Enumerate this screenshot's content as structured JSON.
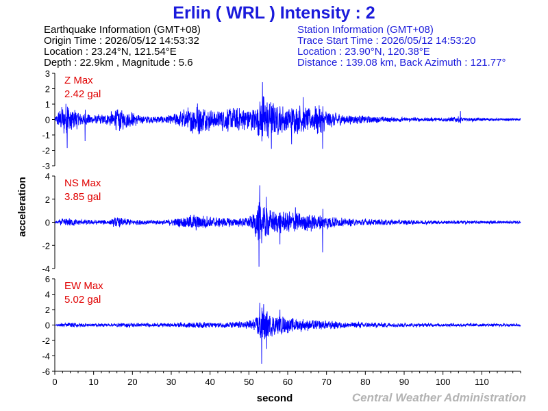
{
  "header": {
    "title": "Erlin  ( WRL )  Intensity : 2",
    "eq_info": [
      "Earthquake Information  (GMT+08)",
      "Origin Time : 2026/05/12 14:53:32",
      "Location : 23.24°N, 121.54°E",
      "Depth : 22.9km , Magnitude : 5.6"
    ],
    "station_info": [
      "Station Information  (GMT+08)",
      "Trace Start Time : 2026/05/12 14:53:20",
      "Location : 23.90°N, 120.38°E",
      "Distance : 139.08 km, Back Azimuth : 121.77°"
    ]
  },
  "footer": {
    "credit": "Central Weather Administration"
  },
  "colors": {
    "title": "#1a1adb",
    "station_text": "#1a1adb",
    "trace": "#0000ff",
    "peak_label": "#e00000",
    "credit": "#b3b3b3",
    "axis": "#000000"
  },
  "chart_data": {
    "type": "line",
    "xlabel": "second",
    "ylabel": "acceleration",
    "xlim": [
      0,
      120
    ],
    "xticks": [
      0,
      10,
      20,
      30,
      40,
      50,
      60,
      70,
      80,
      90,
      100,
      110
    ],
    "grid": false,
    "panels": [
      {
        "name": "Z Max",
        "peak_label": "2.42 gal",
        "ylim": [
          -3,
          3
        ],
        "yticks": [
          3,
          2,
          1,
          0,
          -1,
          -2,
          -3
        ],
        "envelope": [
          [
            0,
            0.08
          ],
          [
            1,
            0.6
          ],
          [
            2,
            0.9
          ],
          [
            3,
            1.1
          ],
          [
            4,
            0.8
          ],
          [
            6,
            0.55
          ],
          [
            8,
            0.4
          ],
          [
            10,
            0.3
          ],
          [
            12,
            0.3
          ],
          [
            14,
            0.4
          ],
          [
            16,
            0.8
          ],
          [
            18,
            0.6
          ],
          [
            20,
            0.5
          ],
          [
            22,
            0.3
          ],
          [
            25,
            0.2
          ],
          [
            28,
            0.25
          ],
          [
            30,
            0.3
          ],
          [
            34,
            0.7
          ],
          [
            36,
            1.1
          ],
          [
            38,
            0.9
          ],
          [
            40,
            0.7
          ],
          [
            42,
            0.6
          ],
          [
            44,
            0.8
          ],
          [
            47,
            0.8
          ],
          [
            50,
            0.7
          ],
          [
            52,
            0.9
          ],
          [
            53.5,
            1.6
          ],
          [
            55,
            1.3
          ],
          [
            57,
            1.0
          ],
          [
            60,
            0.8
          ],
          [
            63,
            0.9
          ],
          [
            66,
            0.7
          ],
          [
            68,
            1.0
          ],
          [
            70,
            0.6
          ],
          [
            73,
            0.4
          ],
          [
            76,
            0.3
          ],
          [
            80,
            0.25
          ],
          [
            85,
            0.18
          ],
          [
            90,
            0.14
          ],
          [
            100,
            0.12
          ],
          [
            104,
            0.2
          ],
          [
            106,
            0.12
          ],
          [
            110,
            0.1
          ],
          [
            120,
            0.08
          ]
        ],
        "spikes": [
          [
            3.2,
            -1.85
          ],
          [
            7.8,
            -1.4
          ],
          [
            53.5,
            2.42
          ],
          [
            55.8,
            -1.9
          ],
          [
            61,
            -1.6
          ],
          [
            69,
            -1.9
          ],
          [
            64,
            1.45
          ],
          [
            104.5,
            0.55
          ]
        ]
      },
      {
        "name": "NS Max",
        "peak_label": "3.85 gal",
        "ylim": [
          -4,
          4
        ],
        "yticks": [
          4,
          2,
          0,
          -2,
          -4
        ],
        "envelope": [
          [
            0,
            0.05
          ],
          [
            2,
            0.3
          ],
          [
            4,
            0.4
          ],
          [
            6,
            0.25
          ],
          [
            10,
            0.2
          ],
          [
            14,
            0.2
          ],
          [
            16,
            0.45
          ],
          [
            18,
            0.35
          ],
          [
            20,
            0.25
          ],
          [
            25,
            0.2
          ],
          [
            28,
            0.2
          ],
          [
            30,
            0.3
          ],
          [
            34,
            0.5
          ],
          [
            36,
            0.7
          ],
          [
            38,
            0.6
          ],
          [
            40,
            0.5
          ],
          [
            44,
            0.4
          ],
          [
            48,
            0.35
          ],
          [
            51,
            0.6
          ],
          [
            52.5,
            1.8
          ],
          [
            54,
            1.5
          ],
          [
            56,
            1.0
          ],
          [
            60,
            0.9
          ],
          [
            64,
            0.8
          ],
          [
            68,
            0.7
          ],
          [
            70,
            0.55
          ],
          [
            75,
            0.35
          ],
          [
            80,
            0.28
          ],
          [
            90,
            0.2
          ],
          [
            100,
            0.16
          ],
          [
            110,
            0.14
          ],
          [
            120,
            0.12
          ]
        ],
        "spikes": [
          [
            52.8,
            3.2
          ],
          [
            52.6,
            -3.85
          ],
          [
            54.5,
            2.2
          ],
          [
            58,
            -1.9
          ],
          [
            62,
            1.3
          ],
          [
            69,
            -2.6
          ]
        ]
      },
      {
        "name": "EW Max",
        "peak_label": "5.02 gal",
        "ylim": [
          -6,
          6
        ],
        "yticks": [
          6,
          4,
          2,
          0,
          -2,
          -4,
          -6
        ],
        "envelope": [
          [
            0,
            0.05
          ],
          [
            2,
            0.25
          ],
          [
            5,
            0.3
          ],
          [
            10,
            0.2
          ],
          [
            15,
            0.2
          ],
          [
            18,
            0.3
          ],
          [
            25,
            0.25
          ],
          [
            30,
            0.25
          ],
          [
            35,
            0.35
          ],
          [
            38,
            0.4
          ],
          [
            42,
            0.35
          ],
          [
            46,
            0.4
          ],
          [
            50,
            0.6
          ],
          [
            52,
            1.0
          ],
          [
            53,
            2.4
          ],
          [
            55,
            1.6
          ],
          [
            57,
            1.2
          ],
          [
            60,
            1.0
          ],
          [
            65,
            0.7
          ],
          [
            70,
            0.55
          ],
          [
            75,
            0.4
          ],
          [
            80,
            0.35
          ],
          [
            90,
            0.25
          ],
          [
            100,
            0.2
          ],
          [
            110,
            0.2
          ],
          [
            120,
            0.18
          ]
        ],
        "spikes": [
          [
            53.3,
            -5.02
          ],
          [
            52.8,
            2.9
          ],
          [
            53.8,
            2.7
          ],
          [
            54.6,
            -3.1
          ],
          [
            58,
            2.0
          ]
        ]
      }
    ]
  }
}
